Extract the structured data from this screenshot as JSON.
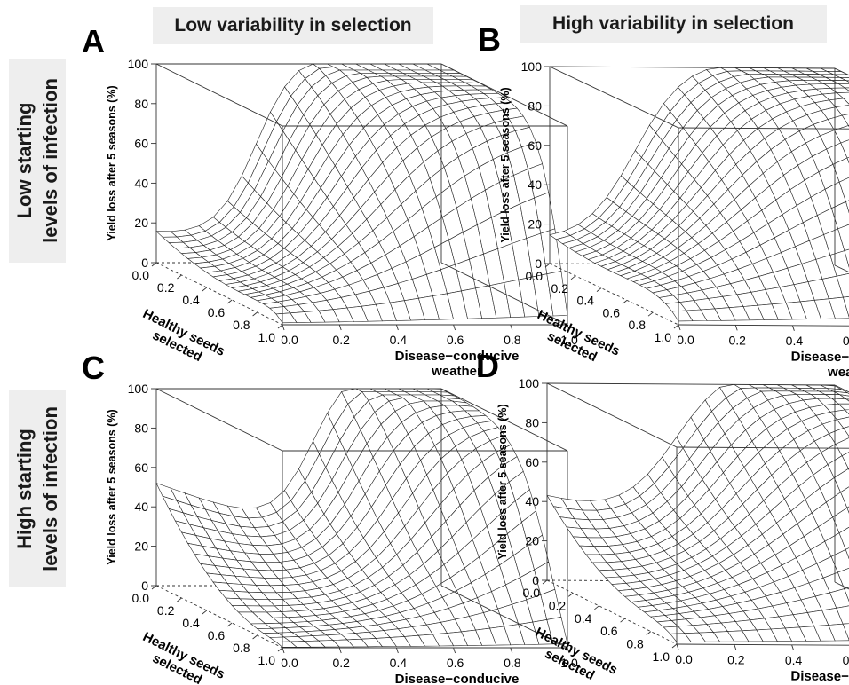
{
  "headers": {
    "left": "Low variability in selection",
    "right": "High variability in selection"
  },
  "row_labels": {
    "top": {
      "line1": "Low starting",
      "line2": "levels of infection"
    },
    "bottom": {
      "line1": "High starting",
      "line2": "levels of infection"
    }
  },
  "panels": [
    {
      "letter": "A"
    },
    {
      "letter": "B"
    },
    {
      "letter": "C"
    },
    {
      "letter": "D"
    }
  ],
  "chart_data": [
    {
      "type": "surface",
      "panel": "A",
      "zlabel": "Yield loss after 5 seasons (%)",
      "xlabel": "Healthy seeds selected",
      "ylabel": "Disease−conducive weather",
      "x_ticks": [
        "0.0",
        "0.2",
        "0.4",
        "0.6",
        "0.8",
        "1.0"
      ],
      "y_ticks": [
        "0.0",
        "0.2",
        "0.4",
        "0.6",
        "0.8",
        "1.0"
      ],
      "z_ticks": [
        "0",
        "20",
        "40",
        "60",
        "80",
        "100"
      ],
      "xlim": [
        0,
        1
      ],
      "ylim": [
        0,
        1
      ],
      "zlim": [
        0,
        100
      ],
      "params": {
        "z00": 15,
        "k": 14,
        "tau": 0.35,
        "saturation": 9,
        "height": 100
      }
    },
    {
      "type": "surface",
      "panel": "B",
      "zlabel": "Yield loss after 5 seasons (%)",
      "xlabel": "Healthy seeds selected",
      "ylabel": "Disease−conducive weather",
      "x_ticks": [
        "0.0",
        "0.2",
        "0.4",
        "0.6",
        "0.8",
        "1.0"
      ],
      "y_ticks": [
        "0.0",
        "0.2",
        "0.4",
        "0.6",
        "0.8",
        "1.0"
      ],
      "z_ticks": [
        "0",
        "20",
        "40",
        "60",
        "80",
        "100"
      ],
      "xlim": [
        0,
        1
      ],
      "ylim": [
        0,
        1
      ],
      "zlim": [
        0,
        100
      ],
      "params": {
        "z00": 11,
        "k": 11,
        "tau": 0.3,
        "saturation": 5,
        "height": 100
      }
    },
    {
      "type": "surface",
      "panel": "C",
      "zlabel": "Yield loss after 5 seasons (%)",
      "xlabel": "Healthy seeds selected",
      "ylabel": "Disease−conducive weather",
      "x_ticks": [
        "0.0",
        "0.2",
        "0.4",
        "0.6",
        "0.8",
        "1.0"
      ],
      "y_ticks": [
        "0.0",
        "0.2",
        "0.4",
        "0.6",
        "0.8",
        "1.0"
      ],
      "z_ticks": [
        "0",
        "20",
        "40",
        "60",
        "80",
        "100"
      ],
      "xlim": [
        0,
        1
      ],
      "ylim": [
        0,
        1
      ],
      "zlim": [
        0,
        100
      ],
      "params": {
        "z00": 52,
        "k": 14,
        "tau": 0.55,
        "saturation": 12,
        "height": 100
      }
    },
    {
      "type": "surface",
      "panel": "D",
      "zlabel": "Yield loss after 5 seasons (%)",
      "xlabel": "Healthy seeds selected",
      "ylabel": "Disease−conducive weather",
      "x_ticks": [
        "0.0",
        "0.2",
        "0.4",
        "0.6",
        "0.8",
        "1.0"
      ],
      "y_ticks": [
        "0.0",
        "0.2",
        "0.4",
        "0.6",
        "0.8",
        "1.0"
      ],
      "z_ticks": [
        "0",
        "20",
        "40",
        "60",
        "80",
        "100"
      ],
      "xlim": [
        0,
        1
      ],
      "ylim": [
        0,
        1
      ],
      "zlim": [
        0,
        100
      ],
      "params": {
        "z00": 42,
        "k": 10,
        "tau": 0.45,
        "saturation": 6,
        "height": 100
      }
    }
  ]
}
